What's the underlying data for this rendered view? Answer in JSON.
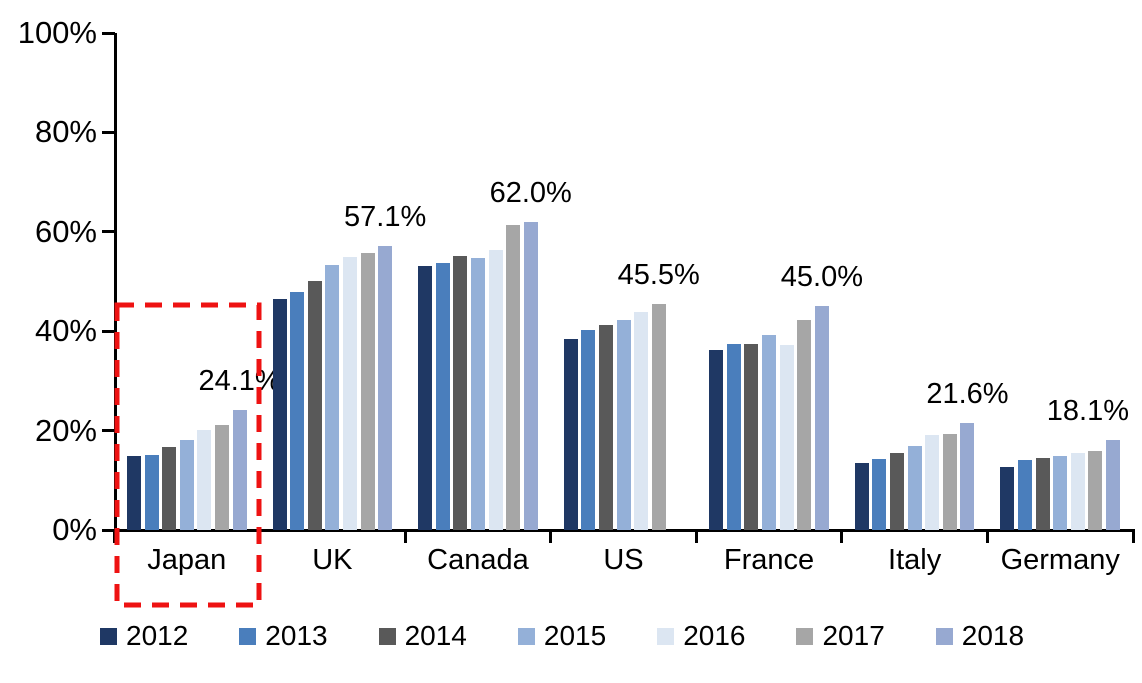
{
  "chart_data": {
    "type": "bar",
    "title": "",
    "xlabel": "",
    "ylabel": "",
    "ylim": [
      0,
      100
    ],
    "yticks": [
      "0%",
      "20%",
      "40%",
      "60%",
      "80%",
      "100%"
    ],
    "grid": false,
    "legend_position": "bottom",
    "categories": [
      "Japan",
      "UK",
      "Canada",
      "US",
      "France",
      "Italy",
      "Germany"
    ],
    "series": [
      {
        "name": "2012",
        "color": "#1F3864",
        "values": [
          14.9,
          46.5,
          53.1,
          38.4,
          36.2,
          13.4,
          12.6
        ]
      },
      {
        "name": "2013",
        "color": "#4A7EBC",
        "values": [
          15.0,
          47.9,
          53.7,
          40.3,
          37.5,
          14.2,
          14.0
        ]
      },
      {
        "name": "2014",
        "color": "#595959",
        "values": [
          16.7,
          50.1,
          55.1,
          41.3,
          37.5,
          15.5,
          14.4
        ]
      },
      {
        "name": "2015",
        "color": "#94B0D8",
        "values": [
          18.2,
          53.3,
          54.7,
          42.3,
          39.2,
          17.0,
          14.8
        ]
      },
      {
        "name": "2016",
        "color": "#DCE6F2",
        "values": [
          20.2,
          54.9,
          56.3,
          43.9,
          37.3,
          19.1,
          15.4
        ]
      },
      {
        "name": "2017",
        "color": "#A6A6A6",
        "values": [
          21.2,
          55.7,
          61.4,
          45.5,
          42.3,
          19.3,
          15.8
        ]
      },
      {
        "name": "2018",
        "color": "#97A9D1",
        "values": [
          24.1,
          57.1,
          62.0,
          null,
          45.0,
          21.6,
          18.1
        ]
      }
    ],
    "annotations": [
      "24.1%",
      "57.1%",
      "62.0%",
      "45.5%",
      "45.0%",
      "21.6%",
      "18.1%"
    ],
    "highlight": {
      "category": "Japan",
      "style": "dashed-box",
      "color": "#EE1212"
    }
  }
}
